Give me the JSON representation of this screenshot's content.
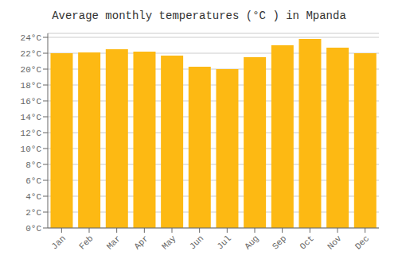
{
  "chart_data": {
    "type": "bar",
    "title": "Average monthly temperatures (°C ) in Mpanda",
    "categories": [
      "Jan",
      "Feb",
      "Mar",
      "Apr",
      "May",
      "Jun",
      "Jul",
      "Aug",
      "Sep",
      "Oct",
      "Nov",
      "Dec"
    ],
    "values": [
      22.0,
      22.1,
      22.5,
      22.2,
      21.7,
      20.3,
      20.0,
      21.5,
      23.0,
      23.8,
      22.7,
      22.0
    ],
    "color": "#FDB913",
    "ylim": [
      0,
      24.5
    ],
    "yticks": [
      {
        "value": 0,
        "label": "0°C"
      },
      {
        "value": 2,
        "label": "2°C"
      },
      {
        "value": 4,
        "label": "4°C"
      },
      {
        "value": 6,
        "label": "6°C"
      },
      {
        "value": 8,
        "label": "8°C"
      },
      {
        "value": 10,
        "label": "10°C"
      },
      {
        "value": 12,
        "label": "12°C"
      },
      {
        "value": 14,
        "label": "14°C"
      },
      {
        "value": 16,
        "label": "16°C"
      },
      {
        "value": 18,
        "label": "18°C"
      },
      {
        "value": 20,
        "label": "20°C"
      },
      {
        "value": 22,
        "label": "22°C"
      },
      {
        "value": 24,
        "label": "24°C"
      }
    ],
    "grid": true
  }
}
